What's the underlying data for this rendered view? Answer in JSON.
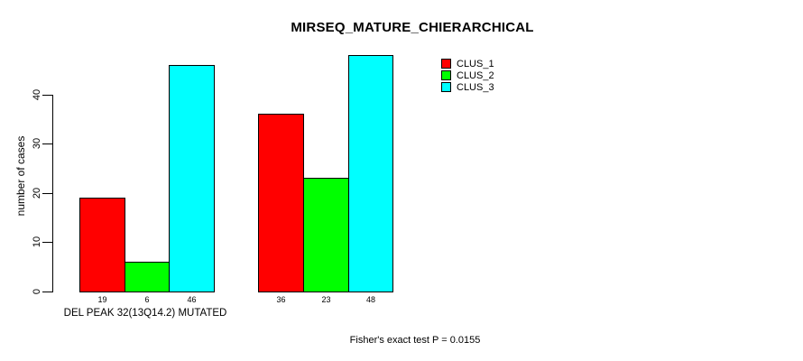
{
  "chart_data": {
    "type": "bar",
    "title": "MIRSEQ_MATURE_CHIERARCHICAL",
    "ylabel": "number of cases",
    "xlabel": "DEL PEAK 32(13Q14.2) MUTATED",
    "footnote": "Fisher's exact test P = 0.0155",
    "categories": [
      "DEL PEAK 32(13Q14.2) MUTATED",
      ""
    ],
    "series": [
      {
        "name": "CLUS_1",
        "color": "#ff0000",
        "values": [
          19,
          36
        ]
      },
      {
        "name": "CLUS_2",
        "color": "#00ff00",
        "values": [
          6,
          23
        ]
      },
      {
        "name": "CLUS_3",
        "color": "#00ffff",
        "values": [
          46,
          48
        ]
      }
    ],
    "y_ticks": [
      0,
      10,
      20,
      30,
      40
    ],
    "ylim": [
      0,
      40
    ],
    "grid": false,
    "legend_position": "top-right",
    "bar_border_color": "#000000",
    "background_color": "#ffffff"
  }
}
